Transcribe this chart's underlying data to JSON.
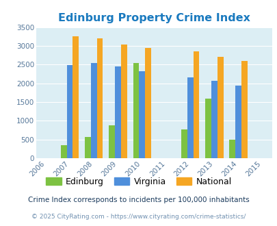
{
  "title": "Edinburg Property Crime Index",
  "years": [
    2006,
    2007,
    2008,
    2009,
    2010,
    2011,
    2012,
    2013,
    2014,
    2015
  ],
  "data_years": [
    2007,
    2008,
    2009,
    2010,
    2012,
    2013,
    2014
  ],
  "edinburg": [
    350,
    575,
    875,
    2540,
    775,
    1590,
    490
  ],
  "virginia": [
    2490,
    2535,
    2450,
    2330,
    2160,
    2065,
    1940
  ],
  "national": [
    3250,
    3200,
    3040,
    2950,
    2850,
    2710,
    2590
  ],
  "edinburg_color": "#7dc242",
  "virginia_color": "#4f8fdb",
  "national_color": "#f5a623",
  "bg_color": "#dceef4",
  "title_color": "#1a7abf",
  "bar_width": 0.25,
  "ylim": [
    0,
    3500
  ],
  "yticks": [
    0,
    500,
    1000,
    1500,
    2000,
    2500,
    3000,
    3500
  ],
  "footnote1": "Crime Index corresponds to incidents per 100,000 inhabitants",
  "footnote2": "© 2025 CityRating.com - https://www.cityrating.com/crime-statistics/",
  "footnote_color1": "#1a3a5c",
  "footnote_color2": "#7090b0"
}
